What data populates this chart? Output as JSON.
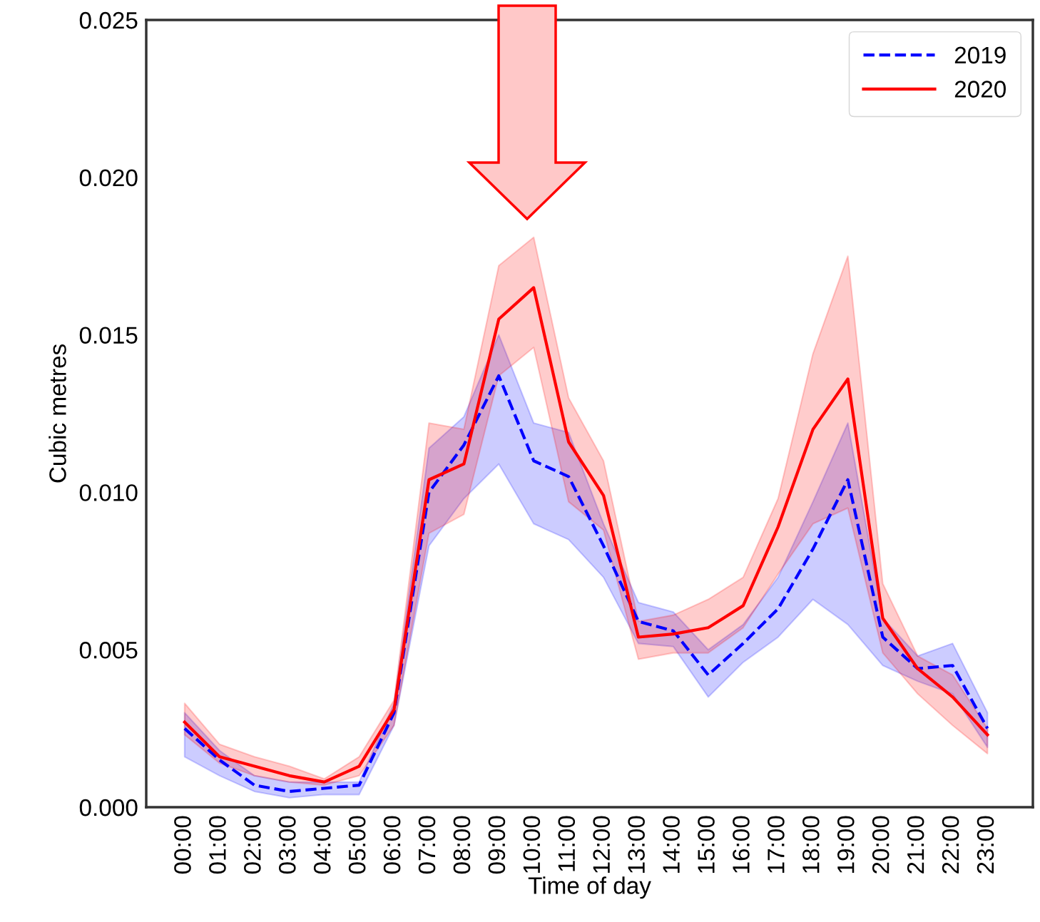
{
  "chart_data": {
    "type": "line",
    "xlabel": "Time of day",
    "ylabel": "Cubic metres",
    "categories": [
      "00:00",
      "01:00",
      "02:00",
      "03:00",
      "04:00",
      "05:00",
      "06:00",
      "07:00",
      "08:00",
      "09:00",
      "10:00",
      "11:00",
      "12:00",
      "13:00",
      "14:00",
      "15:00",
      "16:00",
      "17:00",
      "18:00",
      "19:00",
      "20:00",
      "21:00",
      "22:00",
      "23:00"
    ],
    "series": [
      {
        "name": "2019",
        "color": "#0000ff",
        "line_style": "dashed",
        "values": [
          0.0025,
          0.0015,
          0.0007,
          0.0005,
          0.0006,
          0.0007,
          0.003,
          0.01,
          0.0115,
          0.0137,
          0.011,
          0.0105,
          0.0083,
          0.0059,
          0.0056,
          0.0042,
          0.0052,
          0.0063,
          0.0082,
          0.0104,
          0.0054,
          0.0044,
          0.0045,
          0.0025
        ],
        "lower": [
          0.0016,
          0.001,
          0.0005,
          0.0003,
          0.0004,
          0.0004,
          0.0026,
          0.0083,
          0.0098,
          0.0109,
          0.009,
          0.0085,
          0.0073,
          0.0052,
          0.0051,
          0.0035,
          0.0046,
          0.0054,
          0.0066,
          0.0058,
          0.0045,
          0.004,
          0.0036,
          0.0019
        ],
        "upper": [
          0.003,
          0.0018,
          0.001,
          0.0008,
          0.0008,
          0.0008,
          0.0033,
          0.0114,
          0.0124,
          0.015,
          0.0122,
          0.0119,
          0.009,
          0.0065,
          0.0062,
          0.005,
          0.0058,
          0.0073,
          0.0097,
          0.0122,
          0.006,
          0.0048,
          0.0052,
          0.003
        ]
      },
      {
        "name": "2020",
        "color": "#ff0000",
        "line_style": "solid",
        "values": [
          0.0027,
          0.0016,
          0.0013,
          0.001,
          0.0008,
          0.0013,
          0.0031,
          0.0104,
          0.0109,
          0.0155,
          0.0165,
          0.0116,
          0.0099,
          0.0054,
          0.0055,
          0.0057,
          0.0064,
          0.0089,
          0.012,
          0.0136,
          0.006,
          0.0044,
          0.0035,
          0.0023
        ],
        "lower": [
          0.0023,
          0.0014,
          0.001,
          0.0008,
          0.0007,
          0.001,
          0.0026,
          0.0087,
          0.0093,
          0.0137,
          0.0146,
          0.0097,
          0.0088,
          0.0047,
          0.0049,
          0.0049,
          0.0057,
          0.0074,
          0.009,
          0.0095,
          0.0049,
          0.0036,
          0.0026,
          0.0017
        ],
        "upper": [
          0.0033,
          0.002,
          0.0016,
          0.0013,
          0.0009,
          0.0016,
          0.0034,
          0.0122,
          0.012,
          0.0172,
          0.0181,
          0.013,
          0.011,
          0.0059,
          0.0061,
          0.0066,
          0.0073,
          0.0098,
          0.0144,
          0.0175,
          0.0071,
          0.0048,
          0.0042,
          0.0025
        ]
      }
    ],
    "ylim": [
      0,
      0.025
    ],
    "yticks": [
      {
        "value": 0,
        "label": "0.000"
      },
      {
        "value": 0.005,
        "label": "0.005"
      },
      {
        "value": 0.01,
        "label": "0.010"
      },
      {
        "value": 0.015,
        "label": "0.015"
      },
      {
        "value": 0.02,
        "label": "0.020"
      },
      {
        "value": 0.025,
        "label": "0.025"
      }
    ],
    "grid": false,
    "legend": "top right",
    "marker": "none"
  }
}
